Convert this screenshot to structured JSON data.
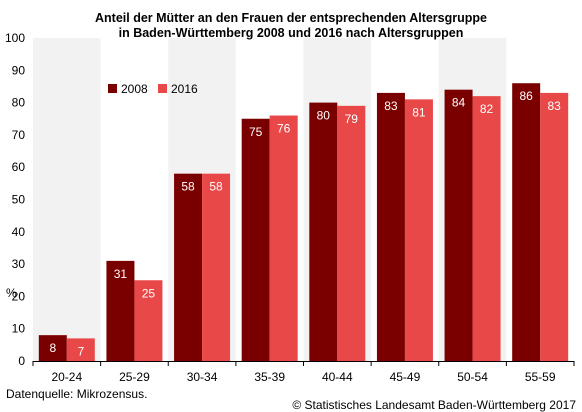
{
  "chart_data": {
    "type": "bar",
    "title": "Anteil der Mütter an den Frauen der entsprechenden Altersgruppe",
    "subtitle": "in Baden-Württemberg 2008 und 2016 nach Altersgruppen",
    "ylabel": "%",
    "ylim": [
      0,
      100
    ],
    "yticks": [
      "0",
      "10",
      "20",
      "30",
      "40",
      "50",
      "60",
      "70",
      "80",
      "90",
      "100"
    ],
    "categories": [
      "20-24",
      "25-29",
      "30-34",
      "35-39",
      "40-44",
      "45-49",
      "50-54",
      "55-59"
    ],
    "series": [
      {
        "name": "2008",
        "color": "#7a0000",
        "values": [
          8,
          31,
          58,
          75,
          80,
          83,
          84,
          86
        ]
      },
      {
        "name": "2016",
        "color": "#e84848",
        "values": [
          7,
          25,
          58,
          76,
          79,
          81,
          82,
          83
        ]
      }
    ],
    "legend_position": "top-left",
    "grid": "vertical bands"
  },
  "footer": {
    "source": "Datenquelle: Mikrozensus.",
    "copyright": "© Statistisches Landesamt Baden-Württemberg 2017"
  }
}
